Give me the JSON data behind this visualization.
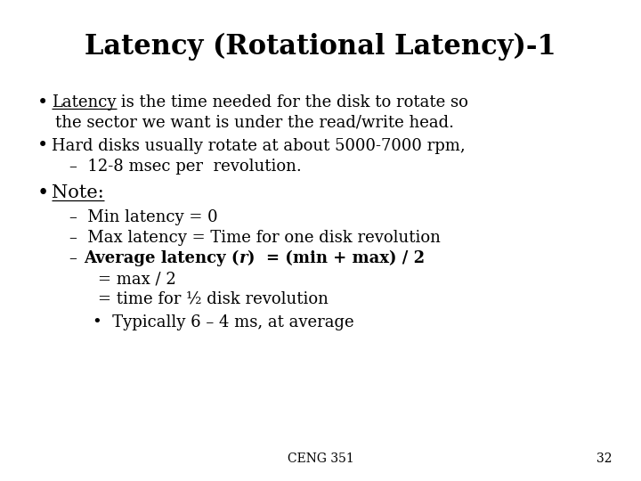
{
  "title": "Latency (Rotational Latency)-1",
  "bg_color": "#ffffff",
  "text_color": "#000000",
  "title_fontsize": 22,
  "body_fontsize": 13,
  "note_fontsize": 15,
  "footer_text": "CENG 351",
  "footer_page": "32",
  "font_family": "serif"
}
